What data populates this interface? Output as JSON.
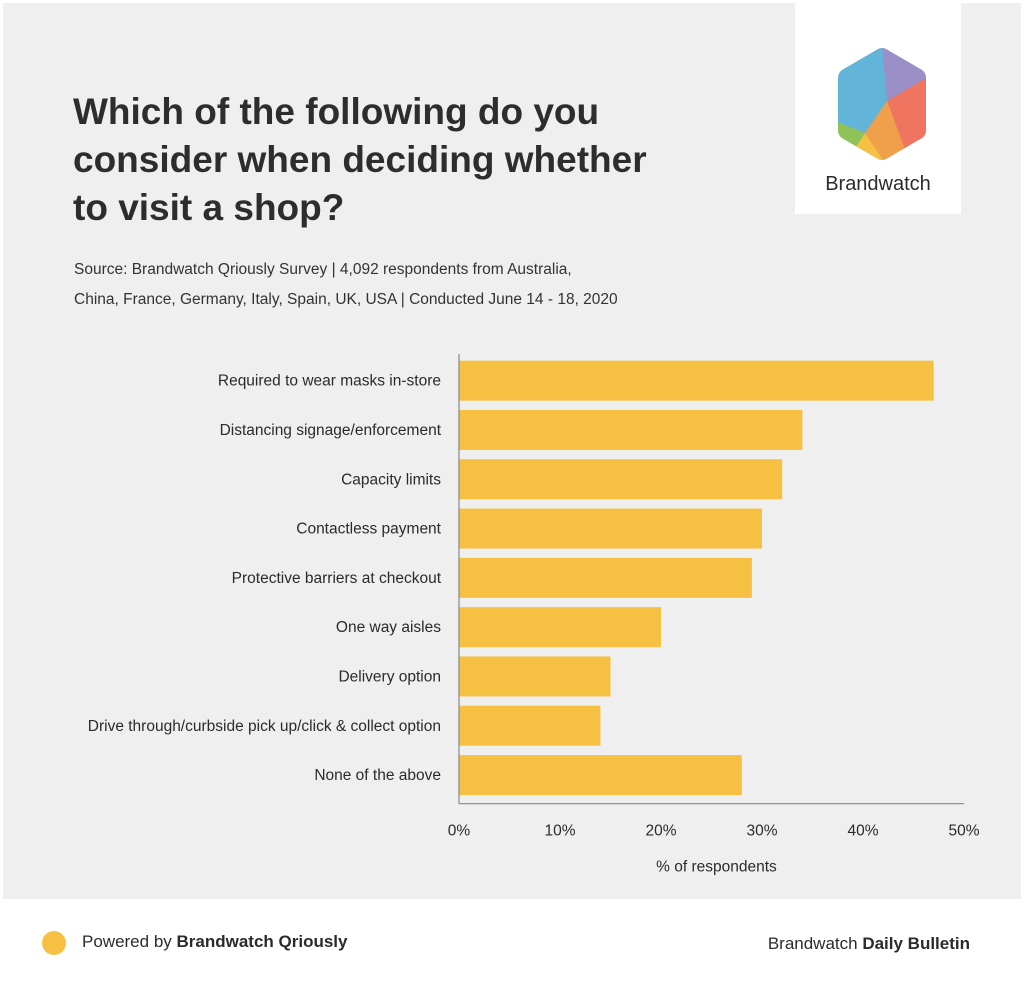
{
  "header": {
    "title_lines": [
      "Which of the following do you",
      "consider when deciding whether",
      "to visit a shop?"
    ],
    "source_lines": [
      "Source: Brandwatch Qriously Survey | 4,092 respondents from Australia,",
      "China, France, Germany, Italy, Spain, UK, USA | Conducted June 14 - 18, 2020"
    ]
  },
  "logo": {
    "wordmark": "Brandwatch",
    "icon": "hexagon-logo-icon",
    "colors": [
      "#9a8fc6",
      "#ef7561",
      "#f0a04b",
      "#f6c142",
      "#8fc257",
      "#63b4d9"
    ]
  },
  "chart_data": {
    "type": "bar",
    "orientation": "horizontal",
    "categories": [
      "Required to wear masks in-store",
      "Distancing signage/enforcement",
      "Capacity limits",
      "Contactless payment",
      "Protective barriers at checkout",
      "One way aisles",
      "Delivery option",
      "Drive through/curbside pick up/click & collect option",
      "None of the above"
    ],
    "values": [
      47,
      34,
      32,
      30,
      29,
      20,
      15,
      14,
      28
    ],
    "xlabel": "% of respondents",
    "ylabel": "",
    "xlim": [
      0,
      50
    ],
    "xticks": [
      "0%",
      "10%",
      "20%",
      "30%",
      "40%",
      "50%"
    ],
    "grid": false,
    "bar_color": "#f6c142"
  },
  "footer": {
    "left_prefix": "Powered by ",
    "left_bold": "Brandwatch Qriously",
    "right_prefix": "Brandwatch ",
    "right_bold": "Daily Bulletin",
    "dot_color": "#f6c142"
  }
}
